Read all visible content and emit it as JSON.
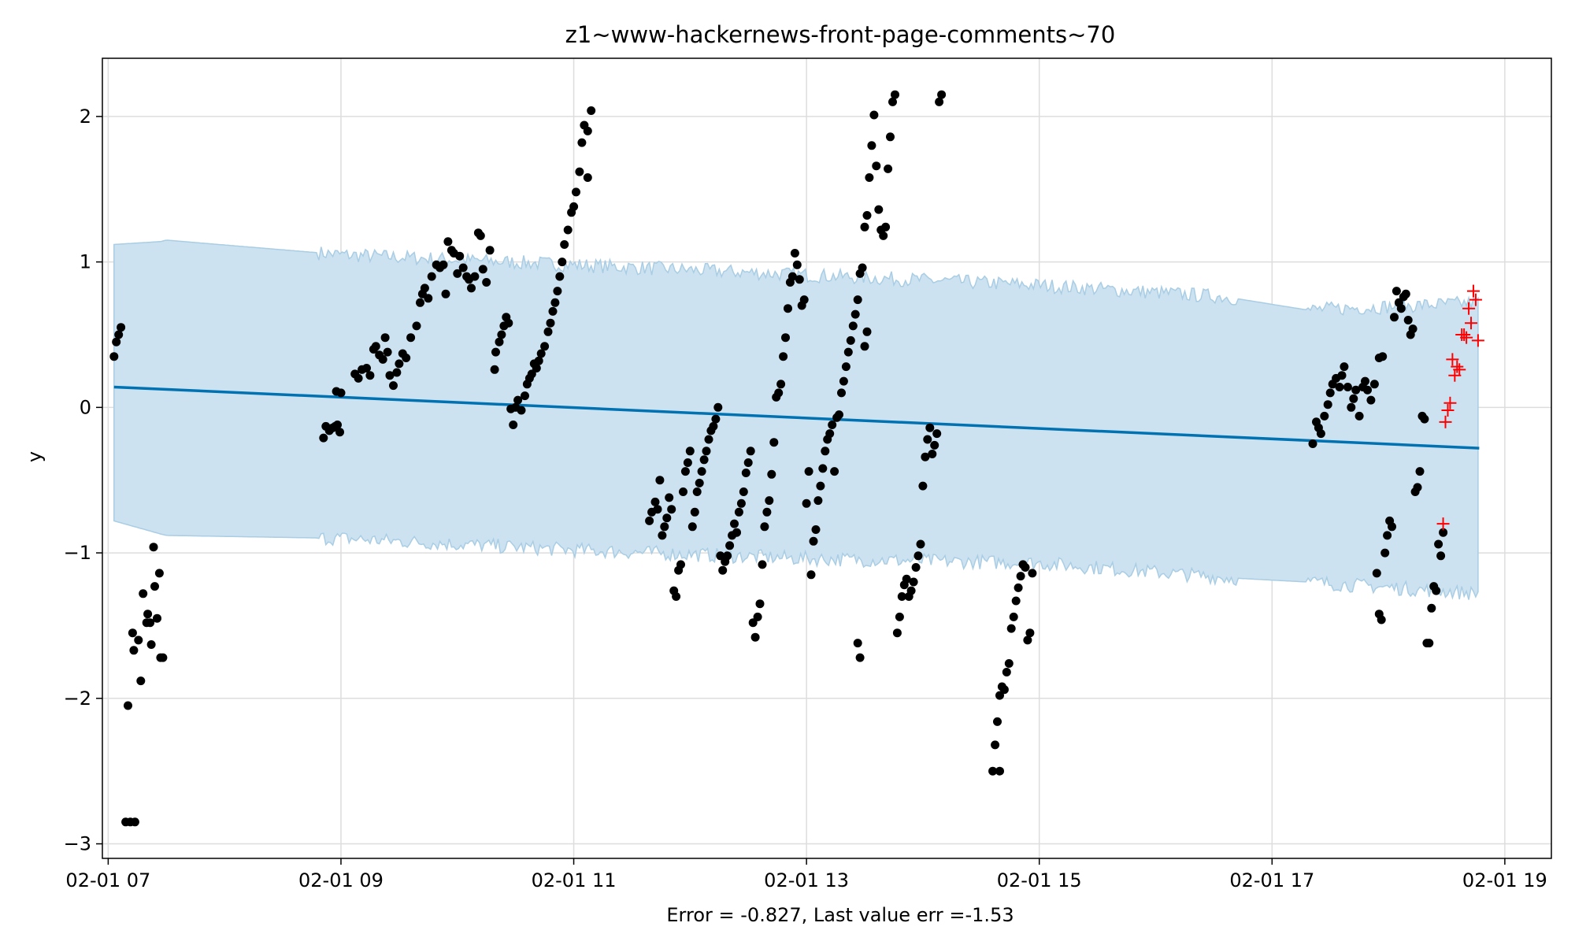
{
  "chart_data": {
    "type": "scatter",
    "title": "z1~www-hackernews-front-page-comments~70",
    "xlabel": "Error = -0.827, Last value err =-1.53",
    "ylabel": "y",
    "xlim": [
      6.95,
      19.4
    ],
    "ylim": [
      -3.1,
      2.4
    ],
    "grid": true,
    "x_ticks": [
      {
        "value": 7,
        "label": "02-01 07"
      },
      {
        "value": 9,
        "label": "02-01 09"
      },
      {
        "value": 11,
        "label": "02-01 11"
      },
      {
        "value": 13,
        "label": "02-01 13"
      },
      {
        "value": 15,
        "label": "02-01 15"
      },
      {
        "value": 17,
        "label": "02-01 17"
      },
      {
        "value": 19,
        "label": "02-01 19"
      }
    ],
    "y_ticks": [
      {
        "value": 2,
        "label": "2"
      },
      {
        "value": 1,
        "label": "1"
      },
      {
        "value": 0,
        "label": "0"
      },
      {
        "value": -1,
        "label": "−1"
      },
      {
        "value": -2,
        "label": "−2"
      },
      {
        "value": -3,
        "label": "−3"
      }
    ],
    "colors": {
      "observed": "#000000",
      "forecast_line": "#0072b2",
      "band_fill": "#cce2f0",
      "band_edge": "#a9cde4",
      "test_points": "#ff0000",
      "grid": "#dddddd"
    },
    "forecast_line": [
      [
        7.05,
        0.14
      ],
      [
        18.78,
        -0.28
      ]
    ],
    "band_upper": [
      [
        7.05,
        1.12
      ],
      [
        7.45,
        1.14
      ],
      [
        7.5,
        1.15
      ],
      [
        9.0,
        1.05
      ],
      [
        11.0,
        0.98
      ],
      [
        13.0,
        0.91
      ],
      [
        15.0,
        0.84
      ],
      [
        16.6,
        0.76
      ],
      [
        17.3,
        0.67
      ],
      [
        18.78,
        0.72
      ]
    ],
    "band_lower": [
      [
        18.78,
        -1.28
      ],
      [
        17.3,
        -1.2
      ],
      [
        16.6,
        -1.17
      ],
      [
        15.0,
        -1.07
      ],
      [
        13.0,
        -1.04
      ],
      [
        11.0,
        -0.98
      ],
      [
        9.0,
        -0.9
      ],
      [
        7.5,
        -0.88
      ],
      [
        7.45,
        -0.87
      ],
      [
        7.05,
        -0.78
      ]
    ],
    "observed": [
      [
        7.05,
        0.35
      ],
      [
        7.07,
        0.45
      ],
      [
        7.09,
        0.5
      ],
      [
        7.11,
        0.55
      ],
      [
        7.15,
        -2.85
      ],
      [
        7.19,
        -2.85
      ],
      [
        7.23,
        -2.85
      ],
      [
        7.17,
        -2.05
      ],
      [
        7.21,
        -1.55
      ],
      [
        7.22,
        -1.67
      ],
      [
        7.26,
        -1.6
      ],
      [
        7.28,
        -1.88
      ],
      [
        7.3,
        -1.28
      ],
      [
        7.33,
        -1.48
      ],
      [
        7.34,
        -1.42
      ],
      [
        7.36,
        -1.48
      ],
      [
        7.37,
        -1.63
      ],
      [
        7.39,
        -0.96
      ],
      [
        7.4,
        -1.23
      ],
      [
        7.42,
        -1.45
      ],
      [
        7.44,
        -1.14
      ],
      [
        7.45,
        -1.72
      ],
      [
        7.47,
        -1.72
      ],
      [
        8.85,
        -0.21
      ],
      [
        8.87,
        -0.13
      ],
      [
        8.9,
        -0.16
      ],
      [
        8.93,
        -0.14
      ],
      [
        8.95,
        -0.13
      ],
      [
        8.97,
        -0.12
      ],
      [
        8.99,
        -0.17
      ],
      [
        8.96,
        0.11
      ],
      [
        9.0,
        0.1
      ],
      [
        9.12,
        0.23
      ],
      [
        9.15,
        0.2
      ],
      [
        9.18,
        0.26
      ],
      [
        9.22,
        0.27
      ],
      [
        9.25,
        0.22
      ],
      [
        9.28,
        0.4
      ],
      [
        9.3,
        0.42
      ],
      [
        9.33,
        0.36
      ],
      [
        9.36,
        0.33
      ],
      [
        9.38,
        0.48
      ],
      [
        9.4,
        0.38
      ],
      [
        9.42,
        0.22
      ],
      [
        9.45,
        0.15
      ],
      [
        9.48,
        0.24
      ],
      [
        9.5,
        0.3
      ],
      [
        9.53,
        0.37
      ],
      [
        9.56,
        0.34
      ],
      [
        9.6,
        0.48
      ],
      [
        9.65,
        0.56
      ],
      [
        9.68,
        0.72
      ],
      [
        9.7,
        0.78
      ],
      [
        9.72,
        0.82
      ],
      [
        9.75,
        0.75
      ],
      [
        9.78,
        0.9
      ],
      [
        9.82,
        0.98
      ],
      [
        9.85,
        0.96
      ],
      [
        9.88,
        0.98
      ],
      [
        9.9,
        0.78
      ],
      [
        9.92,
        1.14
      ],
      [
        9.95,
        1.08
      ],
      [
        9.97,
        1.06
      ],
      [
        10.0,
        0.92
      ],
      [
        10.02,
        1.04
      ],
      [
        10.05,
        0.96
      ],
      [
        10.08,
        0.9
      ],
      [
        10.1,
        0.88
      ],
      [
        10.12,
        0.82
      ],
      [
        10.15,
        0.9
      ],
      [
        10.18,
        1.2
      ],
      [
        10.2,
        1.18
      ],
      [
        10.22,
        0.95
      ],
      [
        10.25,
        0.86
      ],
      [
        10.28,
        1.08
      ],
      [
        10.32,
        0.26
      ],
      [
        10.33,
        0.38
      ],
      [
        10.36,
        0.45
      ],
      [
        10.38,
        0.5
      ],
      [
        10.4,
        0.56
      ],
      [
        10.42,
        0.62
      ],
      [
        10.44,
        0.58
      ],
      [
        10.46,
        -0.01
      ],
      [
        10.48,
        -0.12
      ],
      [
        10.5,
        0.0
      ],
      [
        10.52,
        0.05
      ],
      [
        10.55,
        -0.02
      ],
      [
        10.58,
        0.08
      ],
      [
        10.6,
        0.16
      ],
      [
        10.62,
        0.2
      ],
      [
        10.64,
        0.23
      ],
      [
        10.66,
        0.3
      ],
      [
        10.68,
        0.27
      ],
      [
        10.7,
        0.32
      ],
      [
        10.72,
        0.37
      ],
      [
        10.75,
        0.42
      ],
      [
        10.78,
        0.52
      ],
      [
        10.8,
        0.58
      ],
      [
        10.82,
        0.66
      ],
      [
        10.84,
        0.72
      ],
      [
        10.86,
        0.8
      ],
      [
        10.88,
        0.9
      ],
      [
        10.9,
        1.0
      ],
      [
        10.92,
        1.12
      ],
      [
        10.95,
        1.22
      ],
      [
        10.98,
        1.34
      ],
      [
        11.0,
        1.38
      ],
      [
        11.02,
        1.48
      ],
      [
        11.05,
        1.62
      ],
      [
        11.07,
        1.82
      ],
      [
        11.09,
        1.94
      ],
      [
        11.12,
        1.9
      ],
      [
        11.15,
        2.04
      ],
      [
        11.12,
        1.58
      ],
      [
        11.65,
        -0.78
      ],
      [
        11.67,
        -0.72
      ],
      [
        11.7,
        -0.65
      ],
      [
        11.72,
        -0.7
      ],
      [
        11.74,
        -0.5
      ],
      [
        11.76,
        -0.88
      ],
      [
        11.78,
        -0.82
      ],
      [
        11.8,
        -0.76
      ],
      [
        11.82,
        -0.62
      ],
      [
        11.84,
        -0.7
      ],
      [
        11.86,
        -1.26
      ],
      [
        11.88,
        -1.3
      ],
      [
        11.9,
        -1.12
      ],
      [
        11.92,
        -1.08
      ],
      [
        11.94,
        -0.58
      ],
      [
        11.96,
        -0.44
      ],
      [
        11.98,
        -0.38
      ],
      [
        12.0,
        -0.3
      ],
      [
        12.02,
        -0.82
      ],
      [
        12.04,
        -0.72
      ],
      [
        12.06,
        -0.58
      ],
      [
        12.08,
        -0.52
      ],
      [
        12.1,
        -0.44
      ],
      [
        12.12,
        -0.36
      ],
      [
        12.14,
        -0.3
      ],
      [
        12.16,
        -0.22
      ],
      [
        12.18,
        -0.16
      ],
      [
        12.2,
        -0.13
      ],
      [
        12.22,
        -0.08
      ],
      [
        12.24,
        0.0
      ],
      [
        12.26,
        -1.02
      ],
      [
        12.28,
        -1.12
      ],
      [
        12.3,
        -1.06
      ],
      [
        12.32,
        -1.02
      ],
      [
        12.34,
        -0.95
      ],
      [
        12.36,
        -0.88
      ],
      [
        12.38,
        -0.8
      ],
      [
        12.4,
        -0.86
      ],
      [
        12.42,
        -0.72
      ],
      [
        12.44,
        -0.66
      ],
      [
        12.46,
        -0.58
      ],
      [
        12.48,
        -0.45
      ],
      [
        12.5,
        -0.38
      ],
      [
        12.52,
        -0.3
      ],
      [
        12.54,
        -1.48
      ],
      [
        12.56,
        -1.58
      ],
      [
        12.58,
        -1.44
      ],
      [
        12.6,
        -1.35
      ],
      [
        12.62,
        -1.08
      ],
      [
        12.64,
        -0.82
      ],
      [
        12.66,
        -0.72
      ],
      [
        12.68,
        -0.64
      ],
      [
        12.7,
        -0.46
      ],
      [
        12.72,
        -0.24
      ],
      [
        12.74,
        0.07
      ],
      [
        12.76,
        0.1
      ],
      [
        12.78,
        0.16
      ],
      [
        12.8,
        0.35
      ],
      [
        12.82,
        0.48
      ],
      [
        12.84,
        0.68
      ],
      [
        12.86,
        0.86
      ],
      [
        12.88,
        0.9
      ],
      [
        12.9,
        1.06
      ],
      [
        12.92,
        0.98
      ],
      [
        12.94,
        0.88
      ],
      [
        12.96,
        0.7
      ],
      [
        12.98,
        0.74
      ],
      [
        13.0,
        -0.66
      ],
      [
        13.02,
        -0.44
      ],
      [
        13.04,
        -1.15
      ],
      [
        13.06,
        -0.92
      ],
      [
        13.08,
        -0.84
      ],
      [
        13.1,
        -0.64
      ],
      [
        13.12,
        -0.54
      ],
      [
        13.14,
        -0.42
      ],
      [
        13.16,
        -0.3
      ],
      [
        13.18,
        -0.22
      ],
      [
        13.2,
        -0.18
      ],
      [
        13.22,
        -0.12
      ],
      [
        13.24,
        -0.44
      ],
      [
        13.26,
        -0.07
      ],
      [
        13.28,
        -0.05
      ],
      [
        13.3,
        0.1
      ],
      [
        13.32,
        0.18
      ],
      [
        13.34,
        0.28
      ],
      [
        13.36,
        0.38
      ],
      [
        13.38,
        0.46
      ],
      [
        13.4,
        0.56
      ],
      [
        13.42,
        0.64
      ],
      [
        13.44,
        0.74
      ],
      [
        13.46,
        0.92
      ],
      [
        13.48,
        0.96
      ],
      [
        13.5,
        1.24
      ],
      [
        13.52,
        1.32
      ],
      [
        13.54,
        1.58
      ],
      [
        13.56,
        1.8
      ],
      [
        13.58,
        2.01
      ],
      [
        13.6,
        1.66
      ],
      [
        13.62,
        1.36
      ],
      [
        13.64,
        1.22
      ],
      [
        13.66,
        1.18
      ],
      [
        13.68,
        1.24
      ],
      [
        13.7,
        1.64
      ],
      [
        13.72,
        1.86
      ],
      [
        13.74,
        2.1
      ],
      [
        13.76,
        2.15
      ],
      [
        13.5,
        0.42
      ],
      [
        13.52,
        0.52
      ],
      [
        13.44,
        -1.62
      ],
      [
        13.46,
        -1.72
      ],
      [
        13.78,
        -1.55
      ],
      [
        13.8,
        -1.44
      ],
      [
        13.82,
        -1.3
      ],
      [
        13.84,
        -1.22
      ],
      [
        13.86,
        -1.18
      ],
      [
        13.88,
        -1.3
      ],
      [
        13.9,
        -1.26
      ],
      [
        13.92,
        -1.2
      ],
      [
        13.94,
        -1.1
      ],
      [
        13.96,
        -1.02
      ],
      [
        13.98,
        -0.94
      ],
      [
        14.0,
        -0.54
      ],
      [
        14.02,
        -0.34
      ],
      [
        14.04,
        -0.22
      ],
      [
        14.06,
        -0.14
      ],
      [
        14.08,
        -0.32
      ],
      [
        14.1,
        -0.26
      ],
      [
        14.12,
        -0.18
      ],
      [
        14.14,
        2.1
      ],
      [
        14.16,
        2.15
      ],
      [
        14.6,
        -2.5
      ],
      [
        14.62,
        -2.32
      ],
      [
        14.64,
        -2.16
      ],
      [
        14.66,
        -1.98
      ],
      [
        14.68,
        -1.92
      ],
      [
        14.7,
        -1.94
      ],
      [
        14.72,
        -1.82
      ],
      [
        14.74,
        -1.76
      ],
      [
        14.76,
        -1.52
      ],
      [
        14.78,
        -1.44
      ],
      [
        14.8,
        -1.33
      ],
      [
        14.82,
        -1.24
      ],
      [
        14.84,
        -1.16
      ],
      [
        14.86,
        -1.08
      ],
      [
        14.88,
        -1.1
      ],
      [
        14.9,
        -1.6
      ],
      [
        14.92,
        -1.55
      ],
      [
        14.94,
        -1.14
      ],
      [
        14.66,
        -2.5
      ],
      [
        17.35,
        -0.25
      ],
      [
        17.38,
        -0.1
      ],
      [
        17.4,
        -0.14
      ],
      [
        17.42,
        -0.18
      ],
      [
        17.45,
        -0.06
      ],
      [
        17.48,
        0.02
      ],
      [
        17.5,
        0.1
      ],
      [
        17.52,
        0.16
      ],
      [
        17.55,
        0.2
      ],
      [
        17.58,
        0.14
      ],
      [
        17.6,
        0.22
      ],
      [
        17.62,
        0.28
      ],
      [
        17.65,
        0.14
      ],
      [
        17.68,
        0.0
      ],
      [
        17.7,
        0.06
      ],
      [
        17.72,
        0.12
      ],
      [
        17.75,
        -0.06
      ],
      [
        17.78,
        0.14
      ],
      [
        17.8,
        0.18
      ],
      [
        17.82,
        0.12
      ],
      [
        17.85,
        0.05
      ],
      [
        17.88,
        0.16
      ],
      [
        17.92,
        0.34
      ],
      [
        17.95,
        0.35
      ],
      [
        17.9,
        -1.14
      ],
      [
        17.92,
        -1.42
      ],
      [
        17.94,
        -1.46
      ],
      [
        17.97,
        -1.0
      ],
      [
        17.99,
        -0.88
      ],
      [
        18.01,
        -0.78
      ],
      [
        18.03,
        -0.82
      ],
      [
        18.05,
        0.62
      ],
      [
        18.07,
        0.8
      ],
      [
        18.09,
        0.72
      ],
      [
        18.11,
        0.68
      ],
      [
        18.13,
        0.76
      ],
      [
        18.15,
        0.78
      ],
      [
        18.17,
        0.6
      ],
      [
        18.19,
        0.5
      ],
      [
        18.21,
        0.54
      ],
      [
        18.23,
        -0.58
      ],
      [
        18.25,
        -0.55
      ],
      [
        18.27,
        -0.44
      ],
      [
        18.29,
        -0.06
      ],
      [
        18.31,
        -0.08
      ],
      [
        18.33,
        -1.62
      ],
      [
        18.35,
        -1.62
      ],
      [
        18.37,
        -1.38
      ],
      [
        18.39,
        -1.23
      ],
      [
        18.41,
        -1.26
      ],
      [
        18.43,
        -0.94
      ],
      [
        18.45,
        -1.02
      ],
      [
        18.47,
        -0.86
      ]
    ],
    "test_points": [
      [
        18.47,
        -0.8
      ],
      [
        18.49,
        -0.1
      ],
      [
        18.51,
        -0.02
      ],
      [
        18.53,
        0.03
      ],
      [
        18.55,
        0.33
      ],
      [
        18.57,
        0.22
      ],
      [
        18.59,
        0.28
      ],
      [
        18.61,
        0.26
      ],
      [
        18.63,
        0.5
      ],
      [
        18.65,
        0.5
      ],
      [
        18.67,
        0.48
      ],
      [
        18.69,
        0.68
      ],
      [
        18.71,
        0.58
      ],
      [
        18.73,
        0.8
      ],
      [
        18.75,
        0.74
      ],
      [
        18.77,
        0.46
      ]
    ]
  }
}
